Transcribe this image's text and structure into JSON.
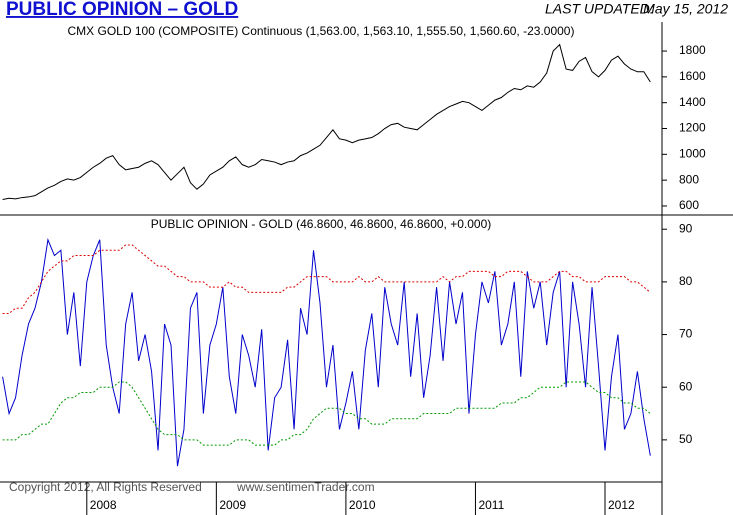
{
  "header": {
    "title": "PUBLIC OPINION – GOLD",
    "last_updated_label": "LAST UPDATED:",
    "last_updated": "May 15, 2012"
  },
  "chart_data": [
    {
      "type": "line",
      "title": "CMX GOLD 100 (COMPOSITE) Continuous (1,563.00, 1,563.10, 1,555.50, 1,560.60, -23.0000)",
      "x": [
        2007.35,
        2007.4,
        2007.45,
        2007.5,
        2007.55,
        2007.6,
        2007.65,
        2007.7,
        2007.75,
        2007.8,
        2007.85,
        2007.9,
        2007.95,
        2008.0,
        2008.05,
        2008.1,
        2008.15,
        2008.2,
        2008.25,
        2008.3,
        2008.35,
        2008.4,
        2008.45,
        2008.5,
        2008.55,
        2008.6,
        2008.65,
        2008.7,
        2008.75,
        2008.8,
        2008.85,
        2008.9,
        2008.95,
        2009.0,
        2009.05,
        2009.1,
        2009.15,
        2009.2,
        2009.25,
        2009.3,
        2009.35,
        2009.4,
        2009.45,
        2009.5,
        2009.55,
        2009.6,
        2009.65,
        2009.7,
        2009.75,
        2009.8,
        2009.85,
        2009.9,
        2009.95,
        2010.0,
        2010.05,
        2010.1,
        2010.15,
        2010.2,
        2010.25,
        2010.3,
        2010.35,
        2010.4,
        2010.45,
        2010.5,
        2010.55,
        2010.6,
        2010.65,
        2010.7,
        2010.75,
        2010.8,
        2010.85,
        2010.9,
        2010.95,
        2011.0,
        2011.05,
        2011.1,
        2011.15,
        2011.2,
        2011.25,
        2011.3,
        2011.35,
        2011.4,
        2011.45,
        2011.5,
        2011.55,
        2011.6,
        2011.65,
        2011.7,
        2011.75,
        2011.8,
        2011.85,
        2011.9,
        2011.95,
        2012.0,
        2012.05,
        2012.1,
        2012.15,
        2012.2,
        2012.25,
        2012.3,
        2012.35
      ],
      "xlim": [
        2007.33,
        2012.44
      ],
      "ylim": [
        530,
        2025
      ],
      "yticks": [
        600,
        800,
        1000,
        1200,
        1400,
        1600,
        1800
      ],
      "series": [
        {
          "color": "#000000",
          "line_style": "solid",
          "values": [
            650,
            660,
            655,
            665,
            670,
            680,
            710,
            740,
            760,
            790,
            810,
            800,
            820,
            860,
            900,
            930,
            970,
            990,
            920,
            880,
            890,
            900,
            930,
            950,
            920,
            860,
            800,
            850,
            900,
            780,
            730,
            770,
            840,
            870,
            900,
            950,
            980,
            920,
            900,
            920,
            960,
            950,
            940,
            920,
            940,
            950,
            990,
            1010,
            1040,
            1070,
            1130,
            1190,
            1120,
            1110,
            1090,
            1110,
            1120,
            1130,
            1160,
            1200,
            1230,
            1240,
            1210,
            1200,
            1190,
            1230,
            1270,
            1310,
            1340,
            1370,
            1390,
            1410,
            1400,
            1370,
            1340,
            1380,
            1420,
            1440,
            1480,
            1510,
            1500,
            1530,
            1520,
            1560,
            1630,
            1800,
            1850,
            1660,
            1650,
            1720,
            1750,
            1640,
            1600,
            1650,
            1730,
            1760,
            1700,
            1660,
            1640,
            1640,
            1560
          ]
        }
      ]
    },
    {
      "type": "line",
      "title": "PUBLIC OPINION - GOLD (46.8600, 46.8600, 46.8600, +0.000)",
      "x": [
        2007.35,
        2007.4,
        2007.45,
        2007.5,
        2007.55,
        2007.6,
        2007.65,
        2007.7,
        2007.75,
        2007.8,
        2007.85,
        2007.9,
        2007.95,
        2008.0,
        2008.05,
        2008.1,
        2008.15,
        2008.2,
        2008.25,
        2008.3,
        2008.35,
        2008.4,
        2008.45,
        2008.5,
        2008.55,
        2008.6,
        2008.65,
        2008.7,
        2008.75,
        2008.8,
        2008.85,
        2008.9,
        2008.95,
        2009.0,
        2009.05,
        2009.1,
        2009.15,
        2009.2,
        2009.25,
        2009.3,
        2009.35,
        2009.4,
        2009.45,
        2009.5,
        2009.55,
        2009.6,
        2009.65,
        2009.7,
        2009.75,
        2009.8,
        2009.85,
        2009.9,
        2009.95,
        2010.0,
        2010.05,
        2010.1,
        2010.15,
        2010.2,
        2010.25,
        2010.3,
        2010.35,
        2010.4,
        2010.45,
        2010.5,
        2010.55,
        2010.6,
        2010.65,
        2010.7,
        2010.75,
        2010.8,
        2010.85,
        2010.9,
        2010.95,
        2011.0,
        2011.05,
        2011.1,
        2011.15,
        2011.2,
        2011.25,
        2011.3,
        2011.35,
        2011.4,
        2011.45,
        2011.5,
        2011.55,
        2011.6,
        2011.65,
        2011.7,
        2011.75,
        2011.8,
        2011.85,
        2011.9,
        2011.95,
        2012.0,
        2012.05,
        2012.1,
        2012.15,
        2012.2,
        2012.25,
        2012.3,
        2012.35
      ],
      "xlim": [
        2007.33,
        2012.44
      ],
      "xticks": [
        2008,
        2009,
        2010,
        2011,
        2012
      ],
      "ylim": [
        42,
        92.7
      ],
      "yticks": [
        50,
        60,
        70,
        80,
        90
      ],
      "series": [
        {
          "color": "#0000cc",
          "line_style": "solid",
          "values": [
            62,
            55,
            58,
            66,
            72,
            75,
            80,
            88,
            85,
            86,
            70,
            78,
            64,
            80,
            85,
            88,
            68,
            60,
            55,
            72,
            78,
            65,
            70,
            63,
            48,
            72,
            68,
            45,
            52,
            75,
            78,
            55,
            68,
            72,
            79,
            62,
            55,
            70,
            66,
            60,
            71,
            48,
            58,
            60,
            69,
            52,
            75,
            70,
            86,
            76,
            60,
            68,
            52,
            57,
            63,
            52,
            67,
            74,
            60,
            79,
            72,
            68,
            80,
            62,
            74,
            58,
            66,
            79,
            65,
            80,
            72,
            78,
            55,
            70,
            80,
            76,
            82,
            68,
            72,
            80,
            62,
            82,
            75,
            80,
            68,
            78,
            82,
            60,
            80,
            72,
            60,
            79,
            64,
            48,
            62,
            70,
            52,
            55,
            63,
            54,
            47
          ]
        },
        {
          "color": "#dd0000",
          "line_style": "dotted",
          "values": [
            74,
            74,
            75,
            75,
            77,
            78,
            80,
            82,
            83,
            84,
            84,
            85,
            85,
            85,
            85,
            86,
            86,
            86,
            86,
            87,
            87,
            86,
            85,
            84,
            83,
            83,
            82,
            81,
            81,
            80,
            80,
            80,
            79,
            79,
            79,
            80,
            79,
            79,
            78,
            78,
            78,
            78,
            78,
            78,
            79,
            79,
            80,
            81,
            81,
            81,
            81,
            80,
            80,
            80,
            80,
            81,
            80,
            80,
            81,
            80,
            80,
            80,
            80,
            80,
            80,
            80,
            80,
            80,
            81,
            80,
            81,
            81,
            82,
            82,
            82,
            82,
            81,
            81,
            82,
            82,
            82,
            81,
            80,
            80,
            80,
            81,
            82,
            82,
            81,
            81,
            80,
            80,
            80,
            81,
            81,
            81,
            81,
            80,
            80,
            79,
            78
          ]
        },
        {
          "color": "#009900",
          "line_style": "dotted",
          "values": [
            50,
            50,
            50,
            51,
            51,
            52,
            53,
            53,
            55,
            57,
            58,
            58,
            59,
            59,
            59,
            60,
            60,
            60,
            61,
            61,
            60,
            58,
            56,
            54,
            52,
            51,
            51,
            51,
            50,
            50,
            50,
            49,
            49,
            49,
            49,
            49,
            50,
            50,
            50,
            49,
            49,
            49,
            49,
            50,
            50,
            51,
            51,
            52,
            54,
            55,
            56,
            56,
            56,
            55,
            55,
            54,
            54,
            53,
            53,
            53,
            54,
            54,
            54,
            54,
            54,
            55,
            55,
            55,
            55,
            55,
            56,
            56,
            56,
            56,
            56,
            56,
            56,
            57,
            57,
            57,
            58,
            58,
            59,
            60,
            60,
            60,
            60,
            61,
            61,
            61,
            61,
            60,
            59,
            59,
            58,
            58,
            57,
            57,
            56,
            56,
            55
          ]
        }
      ]
    }
  ],
  "footer": {
    "copyright": "Copyright 2012, All Rights Reserved",
    "site": "www.sentimenTrader.com"
  }
}
